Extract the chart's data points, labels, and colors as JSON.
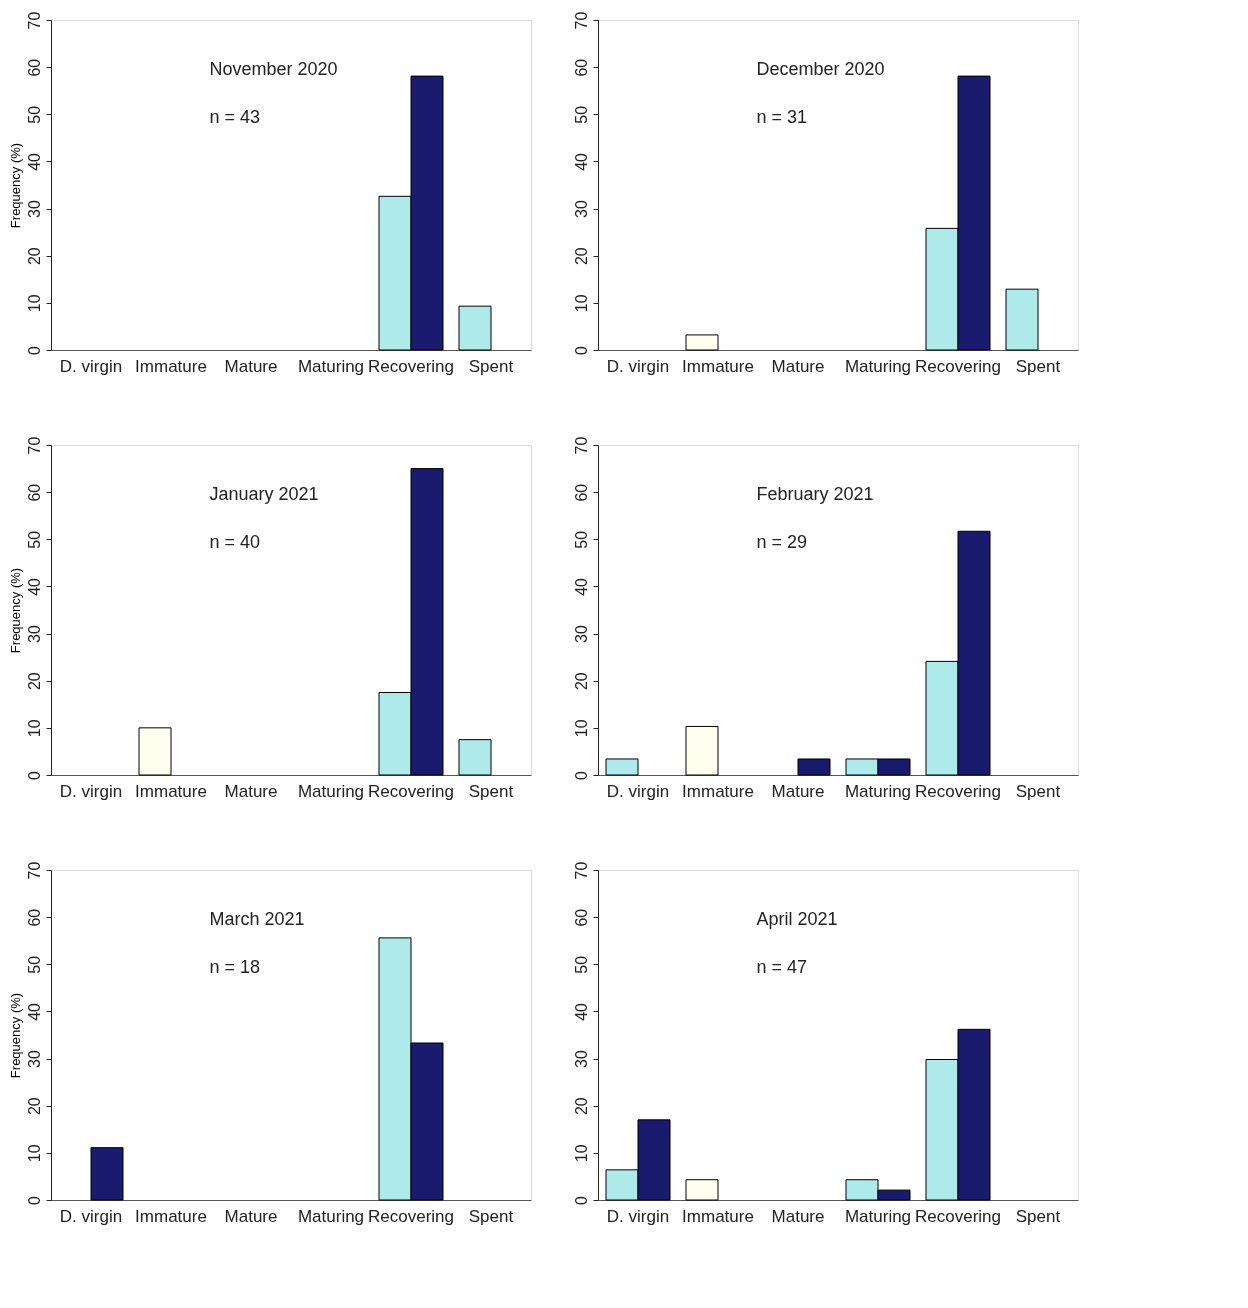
{
  "chart_data": [
    {
      "type": "bar",
      "title": "November 2020",
      "annotations": [
        "n = 43"
      ],
      "ylabel": "Frequency (%)",
      "categories": [
        "D. virgin",
        "Immature",
        "Mature",
        "Maturing",
        "Recovering",
        "Spent"
      ],
      "series": [
        {
          "colors": [
            "#aeeaea",
            "#fffff0",
            "#aeeaea",
            "#aeeaea",
            "#aeeaea",
            "#aeeaea"
          ],
          "values": [
            null,
            null,
            null,
            null,
            32.6,
            9.3
          ]
        },
        {
          "color": "#1a1a6e",
          "values": [
            null,
            null,
            null,
            null,
            58.1,
            null
          ]
        }
      ],
      "ylim": [
        0,
        70
      ],
      "yticks": [
        0,
        10,
        20,
        30,
        40,
        50,
        60,
        70
      ]
    },
    {
      "type": "bar",
      "title": "December 2020",
      "annotations": [
        "n = 31"
      ],
      "categories": [
        "D. virgin",
        "Immature",
        "Mature",
        "Maturing",
        "Recovering",
        "Spent"
      ],
      "series": [
        {
          "colors": [
            "#aeeaea",
            "#fffff0",
            "#aeeaea",
            "#aeeaea",
            "#aeeaea",
            "#aeeaea"
          ],
          "values": [
            null,
            3.2,
            null,
            null,
            25.8,
            12.9
          ]
        },
        {
          "color": "#1a1a6e",
          "values": [
            null,
            null,
            null,
            null,
            58.1,
            null
          ]
        }
      ],
      "ylim": [
        0,
        70
      ],
      "yticks": [
        0,
        10,
        20,
        30,
        40,
        50,
        60,
        70
      ]
    },
    {
      "type": "bar",
      "title": "January 2021",
      "annotations": [
        "n = 40"
      ],
      "ylabel": "Frequency (%)",
      "categories": [
        "D. virgin",
        "Immature",
        "Mature",
        "Maturing",
        "Recovering",
        "Spent"
      ],
      "series": [
        {
          "colors": [
            "#aeeaea",
            "#fffff0",
            "#aeeaea",
            "#aeeaea",
            "#aeeaea",
            "#aeeaea"
          ],
          "values": [
            null,
            10,
            null,
            null,
            17.5,
            7.5
          ]
        },
        {
          "color": "#1a1a6e",
          "values": [
            null,
            null,
            null,
            null,
            65,
            null
          ]
        }
      ],
      "ylim": [
        0,
        70
      ],
      "yticks": [
        0,
        10,
        20,
        30,
        40,
        50,
        60,
        70
      ]
    },
    {
      "type": "bar",
      "title": "February 2021",
      "annotations": [
        "n = 29"
      ],
      "categories": [
        "D. virgin",
        "Immature",
        "Mature",
        "Maturing",
        "Recovering",
        "Spent"
      ],
      "series": [
        {
          "colors": [
            "#aeeaea",
            "#fffff0",
            "#aeeaea",
            "#aeeaea",
            "#aeeaea",
            "#aeeaea"
          ],
          "values": [
            3.4,
            10.3,
            null,
            3.4,
            24.1,
            null
          ]
        },
        {
          "color": "#1a1a6e",
          "values": [
            null,
            null,
            3.4,
            3.4,
            51.7,
            null
          ]
        }
      ],
      "ylim": [
        0,
        70
      ],
      "yticks": [
        0,
        10,
        20,
        30,
        40,
        50,
        60,
        70
      ]
    },
    {
      "type": "bar",
      "title": "March 2021",
      "annotations": [
        "n = 18"
      ],
      "ylabel": "Frequency (%)",
      "categories": [
        "D. virgin",
        "Immature",
        "Mature",
        "Maturing",
        "Recovering",
        "Spent"
      ],
      "series": [
        {
          "colors": [
            "#aeeaea",
            "#fffff0",
            "#aeeaea",
            "#aeeaea",
            "#aeeaea",
            "#aeeaea"
          ],
          "values": [
            null,
            null,
            null,
            null,
            55.6,
            null
          ]
        },
        {
          "color": "#1a1a6e",
          "values": [
            11.1,
            null,
            null,
            null,
            33.3,
            null
          ]
        }
      ],
      "ylim": [
        0,
        70
      ],
      "yticks": [
        0,
        10,
        20,
        30,
        40,
        50,
        60,
        70
      ]
    },
    {
      "type": "bar",
      "title": "April 2021",
      "annotations": [
        "n = 47"
      ],
      "categories": [
        "D. virgin",
        "Immature",
        "Mature",
        "Maturing",
        "Recovering",
        "Spent"
      ],
      "series": [
        {
          "colors": [
            "#aeeaea",
            "#fffff0",
            "#aeeaea",
            "#aeeaea",
            "#aeeaea",
            "#aeeaea"
          ],
          "values": [
            6.4,
            4.3,
            null,
            4.3,
            29.8,
            null
          ]
        },
        {
          "color": "#1a1a6e",
          "values": [
            17.0,
            null,
            null,
            2.1,
            36.2,
            null
          ]
        }
      ],
      "ylim": [
        0,
        70
      ],
      "yticks": [
        0,
        10,
        20,
        30,
        40,
        50,
        60,
        70
      ]
    }
  ]
}
